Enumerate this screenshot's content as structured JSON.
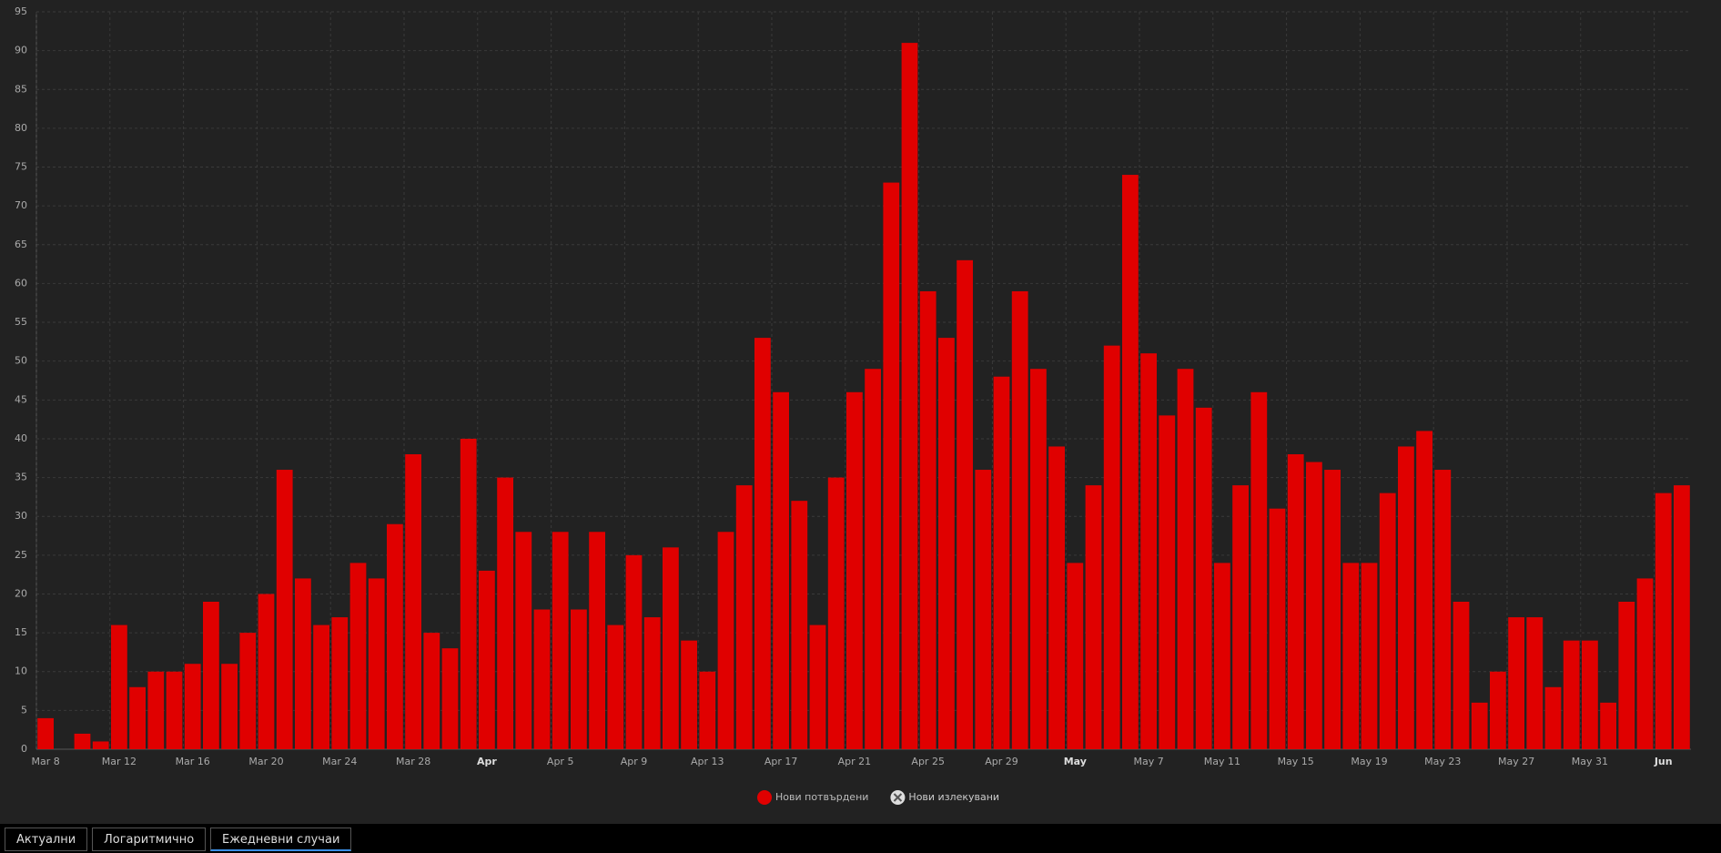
{
  "chart_data": {
    "type": "bar",
    "categories": [
      "Mar 8",
      null,
      null,
      null,
      "Mar 12",
      null,
      null,
      null,
      "Mar 16",
      null,
      null,
      null,
      "Mar 20",
      null,
      null,
      null,
      "Mar 24",
      null,
      null,
      null,
      "Mar 28",
      null,
      null,
      null,
      "Apr",
      null,
      null,
      null,
      "Apr 5",
      null,
      null,
      null,
      "Apr 9",
      null,
      null,
      null,
      "Apr 13",
      null,
      null,
      null,
      "Apr 17",
      null,
      null,
      null,
      "Apr 21",
      null,
      null,
      null,
      "Apr 25",
      null,
      null,
      null,
      "Apr 29",
      null,
      null,
      null,
      "May",
      null,
      null,
      null,
      "May 7",
      null,
      null,
      null,
      "May 11",
      null,
      null,
      null,
      "May 15",
      null,
      null,
      null,
      "May 19",
      null,
      null,
      null,
      "May 23",
      null,
      null,
      null,
      "May 27",
      null,
      null,
      null,
      "May 31",
      null,
      null,
      null,
      "Jun",
      null
    ],
    "series": [
      {
        "name": "Нови потвърдени",
        "color": "#e00000",
        "values": [
          4,
          0,
          2,
          1,
          16,
          8,
          10,
          10,
          11,
          19,
          11,
          15,
          20,
          36,
          22,
          16,
          17,
          24,
          22,
          29,
          38,
          15,
          13,
          40,
          23,
          35,
          28,
          18,
          28,
          18,
          28,
          16,
          25,
          17,
          26,
          14,
          10,
          28,
          34,
          53,
          46,
          32,
          16,
          35,
          46,
          49,
          73,
          91,
          59,
          53,
          63,
          36,
          48,
          59,
          49,
          39,
          24,
          34,
          52,
          74,
          51,
          43,
          49,
          44,
          24,
          34,
          46,
          31,
          38,
          37,
          36,
          24,
          24,
          33,
          39,
          41,
          36,
          19,
          6,
          10,
          17,
          17,
          8,
          14,
          14,
          6,
          19,
          22,
          33,
          34
        ]
      }
    ],
    "hidden_series": [
      {
        "name": "Нови излекувани"
      }
    ],
    "ylim": [
      0,
      95
    ],
    "yticks": [
      0,
      5,
      10,
      15,
      20,
      25,
      30,
      35,
      40,
      45,
      50,
      55,
      60,
      65,
      70,
      75,
      80,
      85,
      90,
      95
    ],
    "grid": true
  },
  "tabs": [
    "Актуални",
    "Логаритмично",
    "Ежедневни случаи"
  ],
  "active_tab": 2
}
